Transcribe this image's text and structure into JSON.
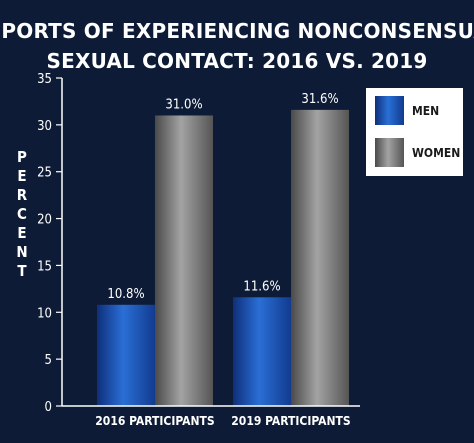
{
  "chart_data": {
    "type": "bar",
    "title_lines": [
      "REPORTS OF EXPERIENCING NONCONSENSUAL",
      "SEXUAL CONTACT: 2016 VS. 2019"
    ],
    "ylabel": "PERCENT",
    "xlabel": "",
    "categories": [
      "2016 PARTICIPANTS",
      "2019 PARTICIPANTS"
    ],
    "series": [
      {
        "name": "MEN",
        "values": [
          10.8,
          11.6
        ],
        "labels": [
          "10.8%",
          "11.6%"
        ],
        "color": "#1f5fc4"
      },
      {
        "name": "WOMEN",
        "values": [
          31.0,
          31.6
        ],
        "labels": [
          "31.0%",
          "31.6%"
        ],
        "color": "#8c8c8c"
      }
    ],
    "ylim": [
      0,
      35
    ],
    "yticks": [
      "0",
      "5",
      "10",
      "15",
      "20",
      "25",
      "30",
      "35"
    ],
    "grid": false,
    "legend_position": "top-right"
  },
  "colors": {
    "background": "#0d1b36",
    "men_bar": "#1f5fc4",
    "women_bar": "#8c8c8c",
    "legend_box": "#ffffff",
    "text": "#ffffff"
  }
}
